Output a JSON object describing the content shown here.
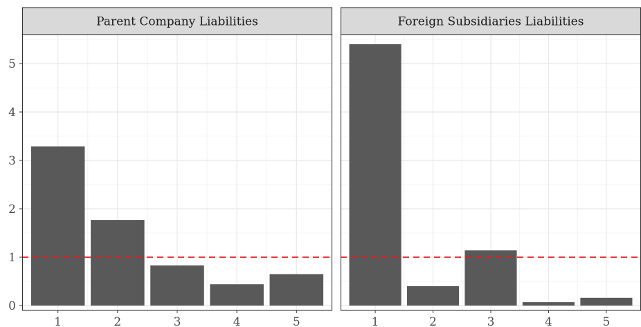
{
  "chart_data": [
    {
      "type": "bar",
      "panel_title": "Parent Company Liabilities",
      "categories": [
        "1",
        "2",
        "3",
        "4",
        "5"
      ],
      "values": [
        3.29,
        1.77,
        0.83,
        0.44,
        0.65
      ],
      "ylim": [
        -0.1,
        5.6
      ],
      "yticks": [
        "0",
        "1",
        "2",
        "3",
        "4",
        "5"
      ],
      "reference_line": {
        "y": 1,
        "color": "#e41a1c",
        "style": "dashed"
      },
      "bar_color": "#595959",
      "grid": true
    },
    {
      "type": "bar",
      "panel_title": "Foreign Subsidiaries Liabilities",
      "categories": [
        "1",
        "2",
        "3",
        "4",
        "5"
      ],
      "values": [
        5.4,
        0.4,
        1.14,
        0.07,
        0.16
      ],
      "ylim": [
        -0.1,
        5.6
      ],
      "reference_line": {
        "y": 1,
        "color": "#e41a1c",
        "style": "dashed"
      },
      "bar_color": "#595959",
      "grid": true
    }
  ]
}
